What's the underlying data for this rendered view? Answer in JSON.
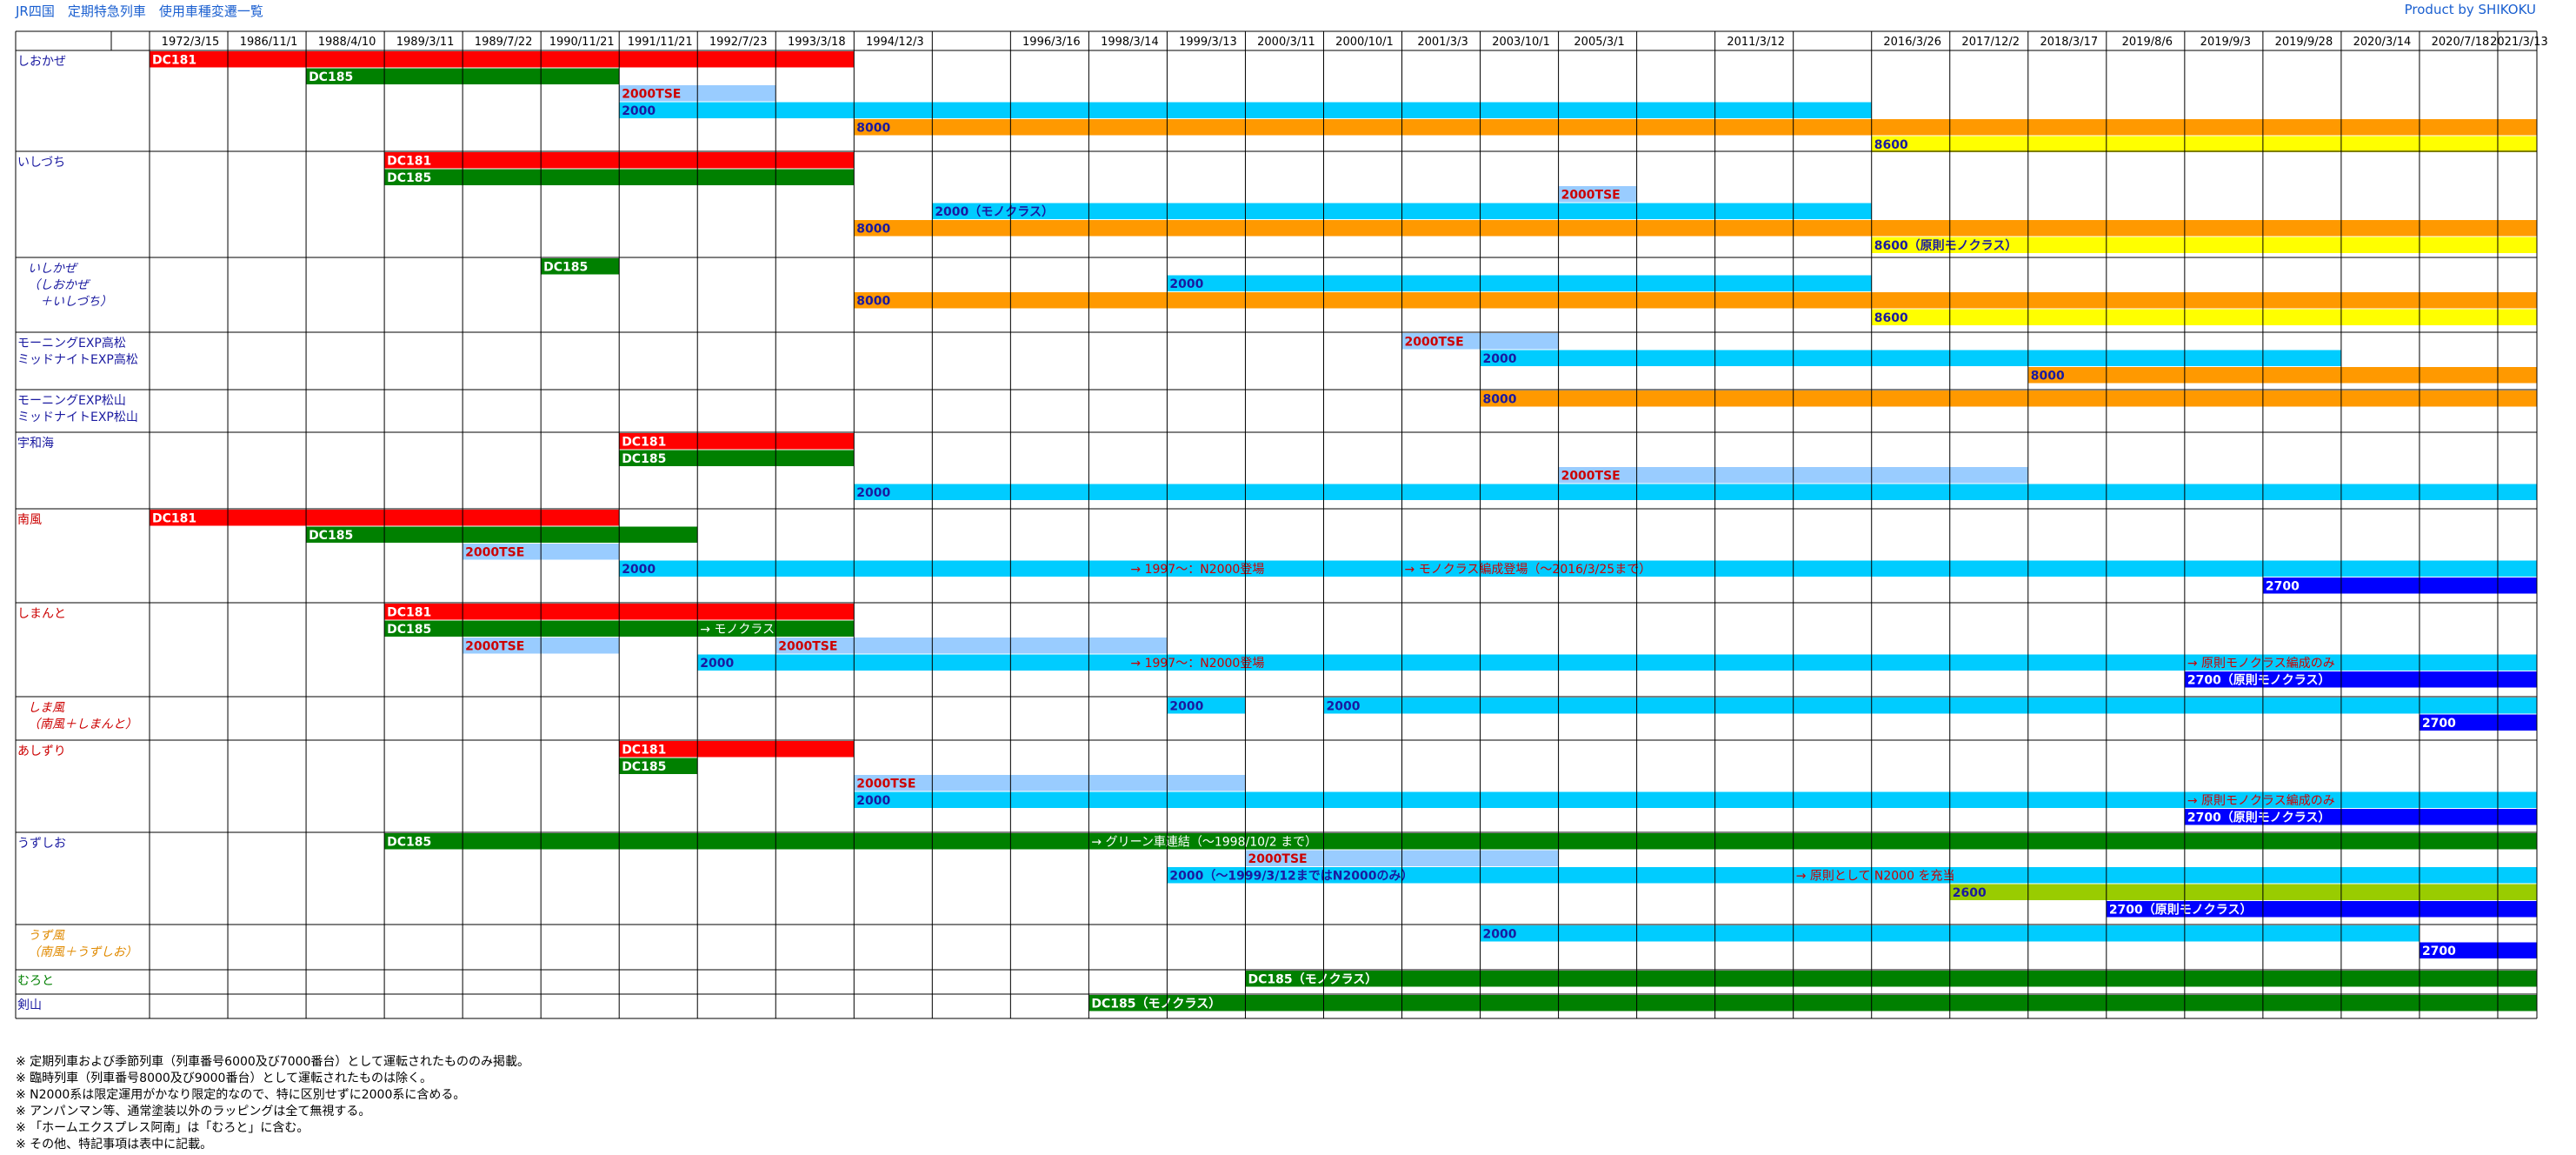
{
  "header": {
    "title": "JR四国　定期特急列車　使用車種変遷一覧",
    "credit": "Product by SHIKOKU"
  },
  "colors": {
    "DC181": "#ff0000",
    "DC185": "#008000",
    "2000TSE": "#99ccff",
    "2000": "#00ccff",
    "8000": "#ff9900",
    "8600": "#ffff00",
    "2600": "#99cc00",
    "2700": "#0000ff",
    "grid": "#000000"
  },
  "chart_data": {
    "type": "gantt",
    "columns": [
      "1972/3/15",
      "1986/11/1",
      "1988/4/10",
      "1989/3/11",
      "1989/7/22",
      "1990/11/21",
      "1991/11/21",
      "1992/7/23",
      "1993/3/18",
      "1994/12/3",
      "",
      "1996/3/16",
      "1998/3/14",
      "1999/3/13",
      "2000/3/11",
      "2000/10/1",
      "2001/3/3",
      "2003/10/1",
      "2005/3/1",
      "",
      "2011/3/12",
      "",
      "2016/3/26",
      "2017/12/2",
      "2018/3/17",
      "2019/8/6",
      "2019/9/3",
      "2019/9/28",
      "2020/3/14",
      "2020/7/18",
      "2021/3/13"
    ],
    "rows": [
      {
        "label": [
          "しおかぜ"
        ],
        "label_color": "#1a1aa0",
        "label_style": "normal",
        "tracks": 6,
        "bars": [
          {
            "label": "DC181",
            "type": "DC181",
            "track": 0,
            "start": 0,
            "end": 9
          },
          {
            "label": "DC185",
            "type": "DC185",
            "track": 1,
            "start": 2,
            "end": 6
          },
          {
            "label": "2000TSE",
            "type": "2000TSE",
            "track": 2,
            "start": 6,
            "end": 8
          },
          {
            "label": "2000",
            "type": "2000",
            "track": 3,
            "start": 6,
            "end": 22
          },
          {
            "label": "8000",
            "type": "8000",
            "track": 4,
            "start": 9,
            "end": 31
          },
          {
            "label": "8600",
            "type": "8600",
            "track": 5,
            "start": 22,
            "end": 31
          }
        ]
      },
      {
        "label": [
          "いしづち"
        ],
        "label_color": "#1a1aa0",
        "label_style": "normal",
        "tracks": 6,
        "bars": [
          {
            "label": "DC181",
            "type": "DC181",
            "track": 0,
            "start": 3,
            "end": 9
          },
          {
            "label": "DC185",
            "type": "DC185",
            "track": 1,
            "start": 3,
            "end": 9
          },
          {
            "label": "2000TSE",
            "type": "2000TSE",
            "track": 2,
            "start": 18,
            "end": 19
          },
          {
            "label": "2000（モノクラス）",
            "type": "2000",
            "track": 3,
            "start": 10,
            "end": 22
          },
          {
            "label": "8000",
            "type": "8000",
            "track": 4,
            "start": 9,
            "end": 31
          },
          {
            "label": "8600（原則モノクラス）",
            "type": "8600",
            "track": 5,
            "start": 22,
            "end": 31
          }
        ]
      },
      {
        "label": [
          "いしかぜ",
          "（しおかぜ",
          "　＋いしづち）"
        ],
        "label_color": "#1a1aa0",
        "label_style": "italic",
        "tracks": 4,
        "bars": [
          {
            "label": "DC185",
            "type": "DC185",
            "track": 0,
            "start": 5,
            "end": 6
          },
          {
            "label": "2000",
            "type": "2000",
            "track": 1,
            "start": 13,
            "end": 22
          },
          {
            "label": "8000",
            "type": "8000",
            "track": 2,
            "start": 9,
            "end": 31
          },
          {
            "label": "8600",
            "type": "8600",
            "track": 3,
            "start": 22,
            "end": 31
          }
        ]
      },
      {
        "label": [
          "モーニングEXP高松",
          "ミッドナイトEXP高松"
        ],
        "label_color": "#1a1aa0",
        "label_style": "normal",
        "tracks": 3,
        "bars": [
          {
            "label": "2000TSE",
            "type": "2000TSE",
            "track": 0,
            "start": 16,
            "end": 18
          },
          {
            "label": "2000",
            "type": "2000",
            "track": 1,
            "start": 17,
            "end": 28
          },
          {
            "label": "8000",
            "type": "8000",
            "track": 2,
            "start": 24,
            "end": 31
          }
        ]
      },
      {
        "label": [
          "モーニングEXP松山",
          "ミッドナイトEXP松山"
        ],
        "label_color": "#1a1aa0",
        "label_style": "normal",
        "tracks": 2,
        "bars": [
          {
            "label": "8000",
            "type": "8000",
            "track": 0,
            "start": 17,
            "end": 31
          }
        ]
      },
      {
        "label": [
          "宇和海"
        ],
        "label_color": "#1a1aa0",
        "label_style": "normal",
        "tracks": 4,
        "bars": [
          {
            "label": "DC181",
            "type": "DC181",
            "track": 0,
            "start": 6,
            "end": 9
          },
          {
            "label": "DC185",
            "type": "DC185",
            "track": 1,
            "start": 6,
            "end": 9
          },
          {
            "label": "2000TSE",
            "type": "2000TSE",
            "track": 2,
            "start": 18,
            "end": 24
          },
          {
            "label": "2000",
            "type": "2000",
            "track": 3,
            "start": 9,
            "end": 31
          }
        ]
      },
      {
        "label": [
          "南風"
        ],
        "label_color": "#cc0000",
        "label_style": "normal",
        "tracks": 5,
        "bars": [
          {
            "label": "DC181",
            "type": "DC181",
            "track": 0,
            "start": 0,
            "end": 6
          },
          {
            "label": "DC185",
            "type": "DC185",
            "track": 1,
            "start": 2,
            "end": 7
          },
          {
            "label": "2000TSE",
            "type": "2000TSE",
            "track": 2,
            "start": 4,
            "end": 6
          },
          {
            "label": "2000",
            "type": "2000",
            "track": 3,
            "start": 6,
            "end": 30.5
          },
          {
            "label": "2700",
            "type": "2700",
            "track": 4,
            "start": 27,
            "end": 31
          }
        ]
      },
      {
        "label": [
          "しまんと"
        ],
        "label_color": "#cc0000",
        "label_style": "normal",
        "tracks": 5,
        "bars": [
          {
            "label": "DC181",
            "type": "DC181",
            "track": 0,
            "start": 3,
            "end": 9
          },
          {
            "label": "DC185",
            "type": "DC185",
            "track": 1,
            "start": 3,
            "end": 9
          },
          {
            "label": "2000TSE",
            "type": "2000TSE",
            "track": 2,
            "start": 4,
            "end": 6
          },
          {
            "label": "2000TSE",
            "type": "2000TSE",
            "track": 2,
            "start": 8,
            "end": 13
          },
          {
            "label": "2000",
            "type": "2000",
            "track": 3,
            "start": 7,
            "end": 30.5
          },
          {
            "label": "2700（原則モノクラス）",
            "type": "2700",
            "track": 4,
            "start": 26,
            "end": 31
          }
        ]
      },
      {
        "label": [
          "しま風",
          "（南風＋しまんと）"
        ],
        "label_color": "#cc0000",
        "label_style": "italic",
        "tracks": 2,
        "bars": [
          {
            "label": "2000",
            "type": "2000",
            "track": 0,
            "start": 13,
            "end": 14
          },
          {
            "label": "2000",
            "type": "2000",
            "track": 0,
            "start": 15,
            "end": 30.5
          },
          {
            "label": "2700",
            "type": "2700",
            "track": 1,
            "start": 29,
            "end": 31
          }
        ]
      },
      {
        "label": [
          "あしずり"
        ],
        "label_color": "#cc0000",
        "label_style": "normal",
        "tracks": 5,
        "bars": [
          {
            "label": "DC181",
            "type": "DC181",
            "track": 0,
            "start": 6,
            "end": 9
          },
          {
            "label": "DC185",
            "type": "DC185",
            "track": 1,
            "start": 6,
            "end": 7
          },
          {
            "label": "2000TSE",
            "type": "2000TSE",
            "track": 2,
            "start": 9,
            "end": 14
          },
          {
            "label": "2000",
            "type": "2000",
            "track": 3,
            "start": 9,
            "end": 30.5
          },
          {
            "label": "2700（原則モノクラス）",
            "type": "2700",
            "track": 4,
            "start": 26,
            "end": 31
          }
        ]
      },
      {
        "label": [
          "うずしお"
        ],
        "label_color": "#1a1aa0",
        "label_style": "normal",
        "tracks": 5,
        "bars": [
          {
            "label": "DC185",
            "type": "DC185",
            "track": 0,
            "start": 3,
            "end": 31
          },
          {
            "label": "2000TSE",
            "type": "2000TSE",
            "track": 1,
            "start": 14,
            "end": 18
          },
          {
            "label": "2000（～1999/3/12まではN2000のみ）",
            "type": "2000",
            "track": 2,
            "start": 13,
            "end": 30.5
          },
          {
            "label": "2600",
            "type": "2600",
            "track": 3,
            "start": 23,
            "end": 31
          },
          {
            "label": "2700（原則モノクラス）",
            "type": "2700",
            "track": 4,
            "start": 25,
            "end": 31
          }
        ]
      },
      {
        "label": [
          "うず風",
          "（南風＋うずしお）"
        ],
        "label_color": "#e08a00",
        "label_style": "italic",
        "tracks": 2,
        "bars": [
          {
            "label": "2000",
            "type": "2000",
            "track": 0,
            "start": 17,
            "end": 29
          },
          {
            "label": "2700",
            "type": "2700",
            "track": 1,
            "start": 29,
            "end": 31
          }
        ]
      },
      {
        "label": [
          "むろと"
        ],
        "label_color": "#008000",
        "label_style": "normal",
        "tracks": 1,
        "bars": [
          {
            "label": "DC185（モノクラス）",
            "type": "DC185",
            "track": 0,
            "start": 14,
            "end": 31
          }
        ]
      },
      {
        "label": [
          "剣山"
        ],
        "label_color": "#1a1aa0",
        "label_style": "normal",
        "tracks": 1,
        "bars": [
          {
            "label": "DC185（モノクラス）",
            "type": "DC185",
            "track": 0,
            "start": 12,
            "end": 31
          }
        ]
      }
    ],
    "annotations": [
      {
        "row": 6,
        "track": 3,
        "at": 12.5,
        "text": "→ 1997～：N2000登場",
        "color": "#cc0000"
      },
      {
        "row": 6,
        "track": 3,
        "at": 16,
        "text": "→ モノクラス編成登場（～2016/3/25まで）",
        "color": "#cc0000"
      },
      {
        "row": 7,
        "track": 1,
        "at": 7,
        "text": "→ モノクラス",
        "color": "#ffffff"
      },
      {
        "row": 7,
        "track": 3,
        "at": 12.5,
        "text": "→ 1997～：N2000登場",
        "color": "#cc0000"
      },
      {
        "row": 7,
        "track": 3,
        "at": 26,
        "text": "→ 原則モノクラス編成のみ",
        "color": "#cc0000"
      },
      {
        "row": 9,
        "track": 3,
        "at": 26,
        "text": "→ 原則モノクラス編成のみ",
        "color": "#cc0000"
      },
      {
        "row": 10,
        "track": 0,
        "at": 12,
        "text": "→ グリーン車連結（～1998/10/2 まで）",
        "color": "#ffffff"
      },
      {
        "row": 10,
        "track": 2,
        "at": 21,
        "text": "→ 原則として N2000 を充当",
        "color": "#cc0000"
      }
    ]
  },
  "notes": [
    "※ 定期列車および季節列車（列車番号6000及び7000番台）として運転されたもののみ掲載。",
    "※ 臨時列車（列車番号8000及び9000番台）として運転されたものは除く。",
    "※ N2000系は限定運用がかなり限定的なので、特に区別せずに2000系に含める。",
    "※ アンパンマン等、通常塗装以外のラッピングは全て無視する。",
    "※ 「ホームエクスプレス阿南」は「むろと」に含む。",
    "※ その他、特記事項は表中に記載。"
  ]
}
